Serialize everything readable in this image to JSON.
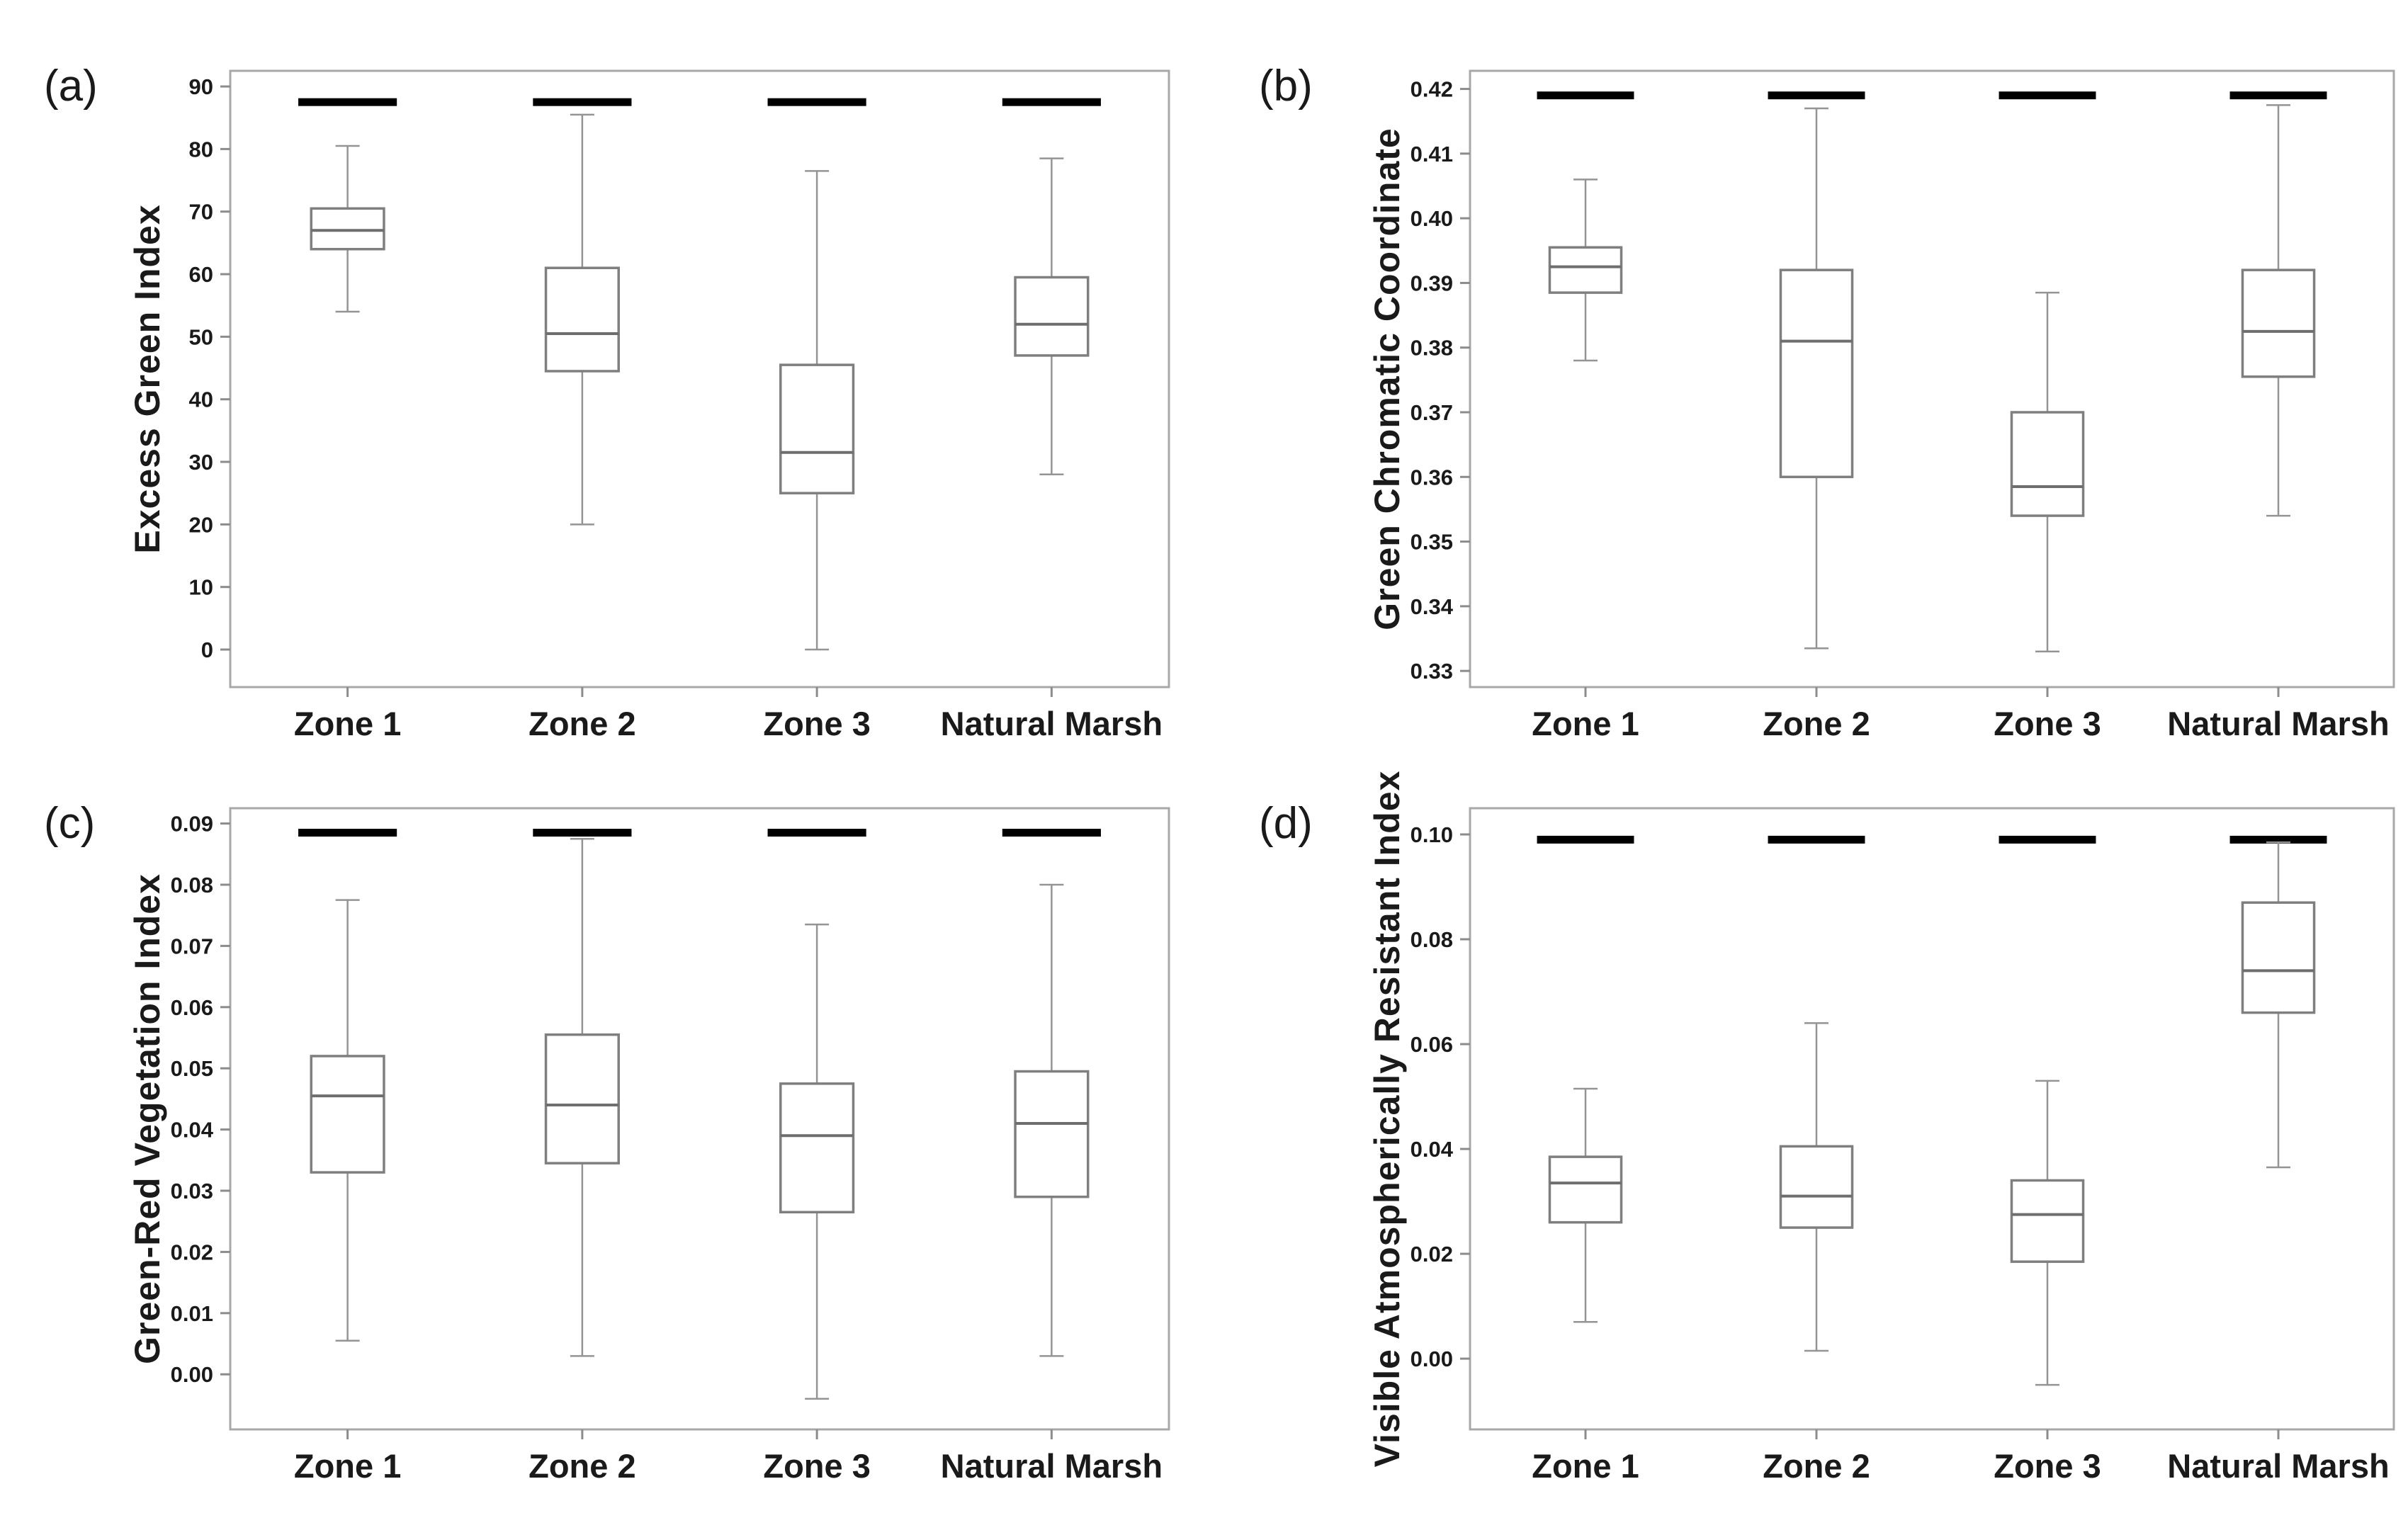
{
  "figure": {
    "background": "#ffffff",
    "categories": [
      "Zone 1",
      "Zone 2",
      "Zone 3",
      "Natural Marsh"
    ],
    "panel_letters": [
      "(a)",
      "(b)",
      "(c)",
      "(d)"
    ]
  },
  "colors": {
    "frame": "#a8a8a8",
    "box_stroke": "#7f7f7f",
    "box_fill": "#ffffff",
    "median_line": "#6e6e6e",
    "whisker": "#949494",
    "tick_mark": "#8c8c8c",
    "text": "#1a1a1a",
    "significance_bar": "#000000"
  },
  "chart_data": [
    {
      "type": "boxplot",
      "panel_label": "(a)",
      "ylabel": "Excess Green Index",
      "categories": [
        "Zone 1",
        "Zone 2",
        "Zone 3",
        "Natural Marsh"
      ],
      "ylim": [
        -6,
        92.5
      ],
      "grid": false,
      "legend": "none",
      "yticks": [
        {
          "value": 0,
          "label": "0"
        },
        {
          "value": 10,
          "label": "10"
        },
        {
          "value": 20,
          "label": "20"
        },
        {
          "value": 30,
          "label": "30"
        },
        {
          "value": 40,
          "label": "40"
        },
        {
          "value": 50,
          "label": "50"
        },
        {
          "value": 60,
          "label": "60"
        },
        {
          "value": 70,
          "label": "70"
        },
        {
          "value": 80,
          "label": "80"
        },
        {
          "value": 90,
          "label": "90"
        }
      ],
      "significance_bar_y": 87.5,
      "significance_bars_over_each_category": true,
      "series": [
        {
          "category": "Zone 1",
          "whisker_low": 54,
          "q1": 64,
          "median": 67,
          "q3": 70.5,
          "whisker_high": 80.5
        },
        {
          "category": "Zone 2",
          "whisker_low": 20,
          "q1": 44.5,
          "median": 50.5,
          "q3": 61,
          "whisker_high": 85.5
        },
        {
          "category": "Zone 3",
          "whisker_low": 0,
          "q1": 25,
          "median": 31.5,
          "q3": 45.5,
          "whisker_high": 76.5
        },
        {
          "category": "Natural Marsh",
          "whisker_low": 28,
          "q1": 47,
          "median": 52,
          "q3": 59.5,
          "whisker_high": 78.5
        }
      ]
    },
    {
      "type": "boxplot",
      "panel_label": "(b)",
      "ylabel": "Green Chromatic Coordinate",
      "categories": [
        "Zone 1",
        "Zone 2",
        "Zone 3",
        "Natural Marsh"
      ],
      "ylim": [
        0.3275,
        0.4228
      ],
      "grid": false,
      "legend": "none",
      "yticks": [
        {
          "value": 0.33,
          "label": "0.33"
        },
        {
          "value": 0.34,
          "label": "0.34"
        },
        {
          "value": 0.35,
          "label": "0.35"
        },
        {
          "value": 0.36,
          "label": "0.36"
        },
        {
          "value": 0.37,
          "label": "0.37"
        },
        {
          "value": 0.38,
          "label": "0.38"
        },
        {
          "value": 0.39,
          "label": "0.39"
        },
        {
          "value": 0.4,
          "label": "0.40"
        },
        {
          "value": 0.41,
          "label": "0.41"
        },
        {
          "value": 0.42,
          "label": "0.42"
        }
      ],
      "significance_bar_y": 0.419,
      "significance_bars_over_each_category": true,
      "series": [
        {
          "category": "Zone 1",
          "whisker_low": 0.378,
          "q1": 0.3885,
          "median": 0.3925,
          "q3": 0.3955,
          "whisker_high": 0.406
        },
        {
          "category": "Zone 2",
          "whisker_low": 0.3335,
          "q1": 0.36,
          "median": 0.381,
          "q3": 0.392,
          "whisker_high": 0.417
        },
        {
          "category": "Zone 3",
          "whisker_low": 0.333,
          "q1": 0.354,
          "median": 0.3585,
          "q3": 0.37,
          "whisker_high": 0.3885
        },
        {
          "category": "Natural Marsh",
          "whisker_low": 0.354,
          "q1": 0.3755,
          "median": 0.3825,
          "q3": 0.392,
          "whisker_high": 0.4175
        }
      ]
    },
    {
      "type": "boxplot",
      "panel_label": "(c)",
      "ylabel": "Green-Red Vegetation Index",
      "categories": [
        "Zone 1",
        "Zone 2",
        "Zone 3",
        "Natural Marsh"
      ],
      "ylim": [
        -0.009,
        0.0925
      ],
      "grid": false,
      "legend": "none",
      "yticks": [
        {
          "value": 0.0,
          "label": "0.00"
        },
        {
          "value": 0.01,
          "label": "0.01"
        },
        {
          "value": 0.02,
          "label": "0.02"
        },
        {
          "value": 0.03,
          "label": "0.03"
        },
        {
          "value": 0.04,
          "label": "0.04"
        },
        {
          "value": 0.05,
          "label": "0.05"
        },
        {
          "value": 0.06,
          "label": "0.06"
        },
        {
          "value": 0.07,
          "label": "0.07"
        },
        {
          "value": 0.08,
          "label": "0.08"
        },
        {
          "value": 0.09,
          "label": "0.09"
        }
      ],
      "significance_bar_y": 0.0885,
      "significance_bars_over_each_category": true,
      "series": [
        {
          "category": "Zone 1",
          "whisker_low": 0.0055,
          "q1": 0.033,
          "median": 0.0455,
          "q3": 0.052,
          "whisker_high": 0.0775
        },
        {
          "category": "Zone 2",
          "whisker_low": 0.003,
          "q1": 0.0345,
          "median": 0.044,
          "q3": 0.0555,
          "whisker_high": 0.0875
        },
        {
          "category": "Zone 3",
          "whisker_low": -0.004,
          "q1": 0.0265,
          "median": 0.039,
          "q3": 0.0475,
          "whisker_high": 0.0735
        },
        {
          "category": "Natural Marsh",
          "whisker_low": 0.003,
          "q1": 0.029,
          "median": 0.041,
          "q3": 0.0495,
          "whisker_high": 0.08
        }
      ]
    },
    {
      "type": "boxplot",
      "panel_label": "(d)",
      "ylabel": "Visible Atmospherically Resistant Index",
      "categories": [
        "Zone 1",
        "Zone 2",
        "Zone 3",
        "Natural Marsh"
      ],
      "ylim": [
        -0.0135,
        0.105
      ],
      "grid": false,
      "legend": "none",
      "yticks": [
        {
          "value": 0.0,
          "label": "0.00"
        },
        {
          "value": 0.02,
          "label": "0.02"
        },
        {
          "value": 0.04,
          "label": "0.04"
        },
        {
          "value": 0.06,
          "label": "0.06"
        },
        {
          "value": 0.08,
          "label": "0.08"
        },
        {
          "value": 0.1,
          "label": "0.10"
        }
      ],
      "significance_bar_y": 0.099,
      "significance_bars_over_each_category": true,
      "series": [
        {
          "category": "Zone 1",
          "whisker_low": 0.007,
          "q1": 0.026,
          "median": 0.0335,
          "q3": 0.0385,
          "whisker_high": 0.0515
        },
        {
          "category": "Zone 2",
          "whisker_low": 0.0015,
          "q1": 0.025,
          "median": 0.031,
          "q3": 0.0405,
          "whisker_high": 0.064
        },
        {
          "category": "Zone 3",
          "whisker_low": -0.005,
          "q1": 0.0185,
          "median": 0.0275,
          "q3": 0.034,
          "whisker_high": 0.053
        },
        {
          "category": "Natural Marsh",
          "whisker_low": 0.0365,
          "q1": 0.066,
          "median": 0.074,
          "q3": 0.087,
          "whisker_high": 0.0985
        }
      ]
    }
  ]
}
